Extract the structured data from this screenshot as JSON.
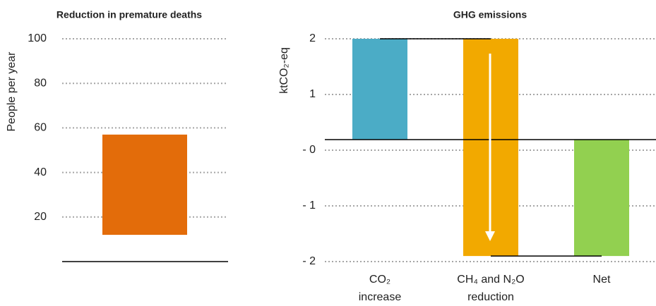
{
  "chart_data": [
    {
      "type": "range-bar",
      "title": "Reduction in premature deaths",
      "y_label": "People per year",
      "low": [
        12
      ],
      "high": [
        57
      ],
      "color": "#e36c0a",
      "ylim": [
        0,
        100
      ],
      "yticks": [
        20,
        40,
        60,
        80,
        100
      ],
      "grid": true
    },
    {
      "type": "waterfall",
      "title": "GHG emissions",
      "y_label": "ktCO₂-eq",
      "categories": [
        [
          "CO₂",
          "increase"
        ],
        [
          "CH₄ and N₂O",
          "reduction"
        ],
        [
          "Net"
        ]
      ],
      "low": [
        0.19,
        -1.9,
        -1.9
      ],
      "high": [
        2,
        2,
        0.19
      ],
      "baseline": 0.19,
      "colors": [
        "#4bacc6",
        "#f2a900",
        "#92d050"
      ],
      "ylim": [
        -2,
        2
      ],
      "yticks": [
        2,
        1,
        {
          "value": 0,
          "label": "- 0"
        },
        {
          "value": -1,
          "label": "- 1"
        },
        {
          "value": -2,
          "label": "- 2"
        }
      ],
      "grid": true
    }
  ]
}
